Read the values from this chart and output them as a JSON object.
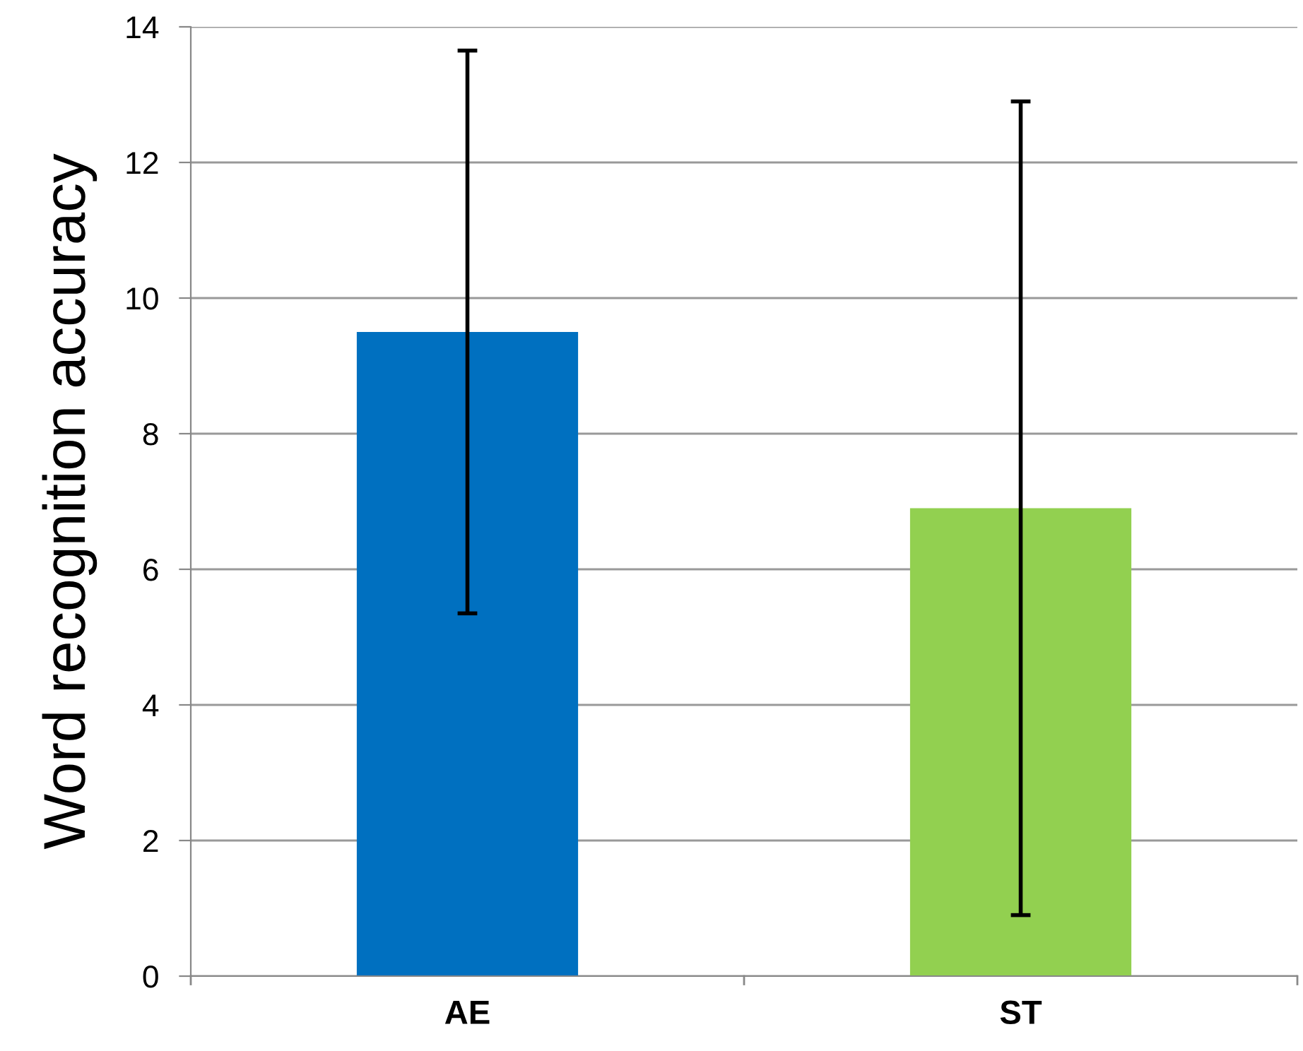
{
  "chart_data": {
    "type": "bar",
    "ylabel": "Word recognition accuracy",
    "categories": [
      "AE",
      "ST"
    ],
    "values": [
      9.5,
      6.9
    ],
    "colors": [
      "#0070c0",
      "#92d050"
    ],
    "errors": [
      4.15,
      6.0
    ],
    "ylim": [
      0,
      14
    ],
    "yticks": [
      0,
      2,
      4,
      6,
      8,
      10,
      12,
      14
    ],
    "grid": "y",
    "legend": false
  }
}
